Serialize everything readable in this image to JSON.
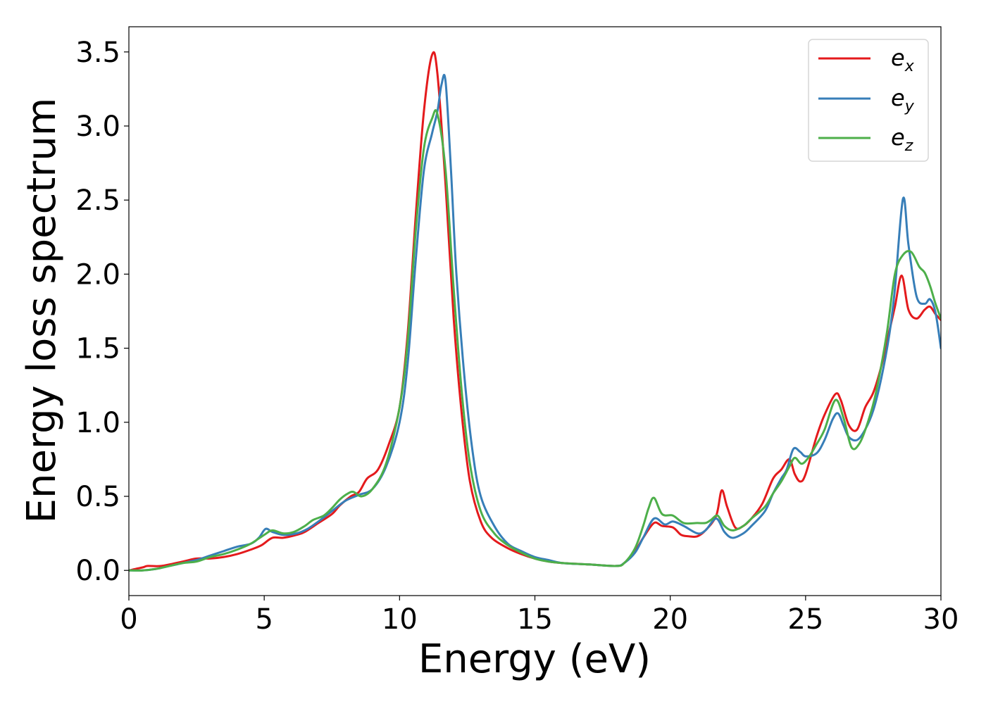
{
  "chart_data": {
    "type": "line",
    "title": "",
    "xlabel": "Energy (eV)",
    "ylabel": "Energy loss spectrum",
    "xlim": [
      0,
      30
    ],
    "ylim": [
      -0.17,
      3.67
    ],
    "xticks": [
      0,
      5,
      10,
      15,
      20,
      25,
      30
    ],
    "xtick_labels": [
      "0",
      "5",
      "10",
      "15",
      "20",
      "25",
      "30"
    ],
    "yticks": [
      0.0,
      0.5,
      1.0,
      1.5,
      2.0,
      2.5,
      3.0,
      3.5
    ],
    "ytick_labels": [
      "0.0",
      "0.5",
      "1.0",
      "1.5",
      "2.0",
      "2.5",
      "3.0",
      "3.5"
    ],
    "grid": false,
    "legend_position": "top-right",
    "series": [
      {
        "name": "e_x",
        "label_base": "e",
        "label_sub": "x",
        "color": "#e41a1c",
        "x": [
          0,
          0.5,
          0.7,
          1.2,
          2,
          2.5,
          3,
          3.5,
          4,
          4.5,
          4.9,
          5.3,
          5.7,
          6.2,
          6.5,
          7,
          7.5,
          7.8,
          8.2,
          8.5,
          8.8,
          9.2,
          9.6,
          10,
          10.3,
          10.6,
          10.9,
          11.2,
          11.4,
          11.7,
          12,
          12.3,
          12.6,
          13,
          13.4,
          14,
          14.5,
          15,
          15.5,
          16,
          17,
          18,
          18.3,
          18.7,
          19,
          19.4,
          19.7,
          20.1,
          20.4,
          20.7,
          21,
          21.3,
          21.7,
          21.9,
          22.1,
          22.4,
          22.7,
          23,
          23.4,
          23.8,
          24.1,
          24.4,
          24.6,
          24.8,
          25,
          25.4,
          25.7,
          26.1,
          26.3,
          26.6,
          26.9,
          27.2,
          27.5,
          27.8,
          28.1,
          28.3,
          28.55,
          28.8,
          29.1,
          29.4,
          29.6,
          29.8,
          30
        ],
        "y": [
          0,
          0.02,
          0.03,
          0.03,
          0.06,
          0.08,
          0.08,
          0.09,
          0.11,
          0.14,
          0.17,
          0.22,
          0.22,
          0.24,
          0.26,
          0.32,
          0.38,
          0.44,
          0.5,
          0.53,
          0.62,
          0.68,
          0.85,
          1.1,
          1.6,
          2.4,
          3.1,
          3.48,
          3.35,
          2.6,
          1.7,
          1.05,
          0.6,
          0.33,
          0.22,
          0.15,
          0.11,
          0.08,
          0.06,
          0.05,
          0.04,
          0.03,
          0.05,
          0.13,
          0.22,
          0.32,
          0.3,
          0.29,
          0.24,
          0.23,
          0.23,
          0.27,
          0.37,
          0.54,
          0.43,
          0.29,
          0.3,
          0.35,
          0.45,
          0.62,
          0.68,
          0.75,
          0.65,
          0.6,
          0.65,
          0.9,
          1.05,
          1.19,
          1.15,
          0.98,
          0.95,
          1.1,
          1.2,
          1.38,
          1.62,
          1.78,
          1.99,
          1.76,
          1.7,
          1.76,
          1.78,
          1.73,
          1.69
        ]
      },
      {
        "name": "e_y",
        "label_base": "e",
        "label_sub": "y",
        "color": "#377eb8",
        "x": [
          0,
          0.5,
          1,
          1.5,
          2,
          2.5,
          3,
          3.5,
          4,
          4.5,
          4.8,
          5.05,
          5.3,
          5.7,
          6.2,
          6.6,
          7,
          7.5,
          8,
          8.5,
          9,
          9.5,
          10,
          10.3,
          10.6,
          10.9,
          11.2,
          11.4,
          11.55,
          11.7,
          11.9,
          12.1,
          12.4,
          12.7,
          13,
          13.5,
          14,
          14.5,
          15,
          15.5,
          16,
          17,
          18,
          18.3,
          18.7,
          19,
          19.4,
          19.8,
          20.1,
          20.5,
          21,
          21.3,
          21.7,
          22,
          22.3,
          22.7,
          23,
          23.5,
          23.8,
          24.1,
          24.3,
          24.55,
          24.8,
          25,
          25.4,
          25.7,
          26,
          26.2,
          26.4,
          26.6,
          26.9,
          27.2,
          27.5,
          27.8,
          28.1,
          28.3,
          28.6,
          28.8,
          29.1,
          29.4,
          29.6,
          29.8,
          30
        ],
        "y": [
          0,
          0,
          0.01,
          0.03,
          0.05,
          0.07,
          0.1,
          0.13,
          0.16,
          0.18,
          0.22,
          0.28,
          0.26,
          0.24,
          0.25,
          0.28,
          0.33,
          0.4,
          0.47,
          0.51,
          0.55,
          0.7,
          1.0,
          1.4,
          2.1,
          2.7,
          2.95,
          3.1,
          3.28,
          3.3,
          2.7,
          2.0,
          1.3,
          0.8,
          0.5,
          0.3,
          0.18,
          0.13,
          0.09,
          0.07,
          0.05,
          0.04,
          0.03,
          0.05,
          0.12,
          0.22,
          0.35,
          0.31,
          0.33,
          0.3,
          0.25,
          0.27,
          0.35,
          0.26,
          0.22,
          0.25,
          0.3,
          0.4,
          0.52,
          0.62,
          0.68,
          0.82,
          0.8,
          0.77,
          0.79,
          0.88,
          1.02,
          1.06,
          0.98,
          0.9,
          0.88,
          0.95,
          1.08,
          1.3,
          1.6,
          1.9,
          2.51,
          2.2,
          1.85,
          1.8,
          1.83,
          1.74,
          1.5
        ]
      },
      {
        "name": "e_z",
        "label_base": "e",
        "label_sub": "z",
        "color": "#4daf4a",
        "x": [
          0,
          0.5,
          1,
          1.5,
          2,
          2.5,
          3,
          3.5,
          4,
          4.5,
          5,
          5.3,
          5.7,
          6.1,
          6.5,
          6.8,
          7.2,
          7.5,
          7.8,
          8.1,
          8.3,
          8.6,
          9,
          9.5,
          10,
          10.3,
          10.6,
          10.9,
          11.2,
          11.4,
          11.7,
          12,
          12.3,
          12.6,
          13,
          13.5,
          14,
          14.5,
          15,
          15.5,
          16,
          17,
          18,
          18.3,
          18.7,
          19,
          19.2,
          19.4,
          19.7,
          20.1,
          20.5,
          21,
          21.3,
          21.5,
          21.75,
          22,
          22.3,
          22.7,
          23,
          23.5,
          23.8,
          24.1,
          24.4,
          24.6,
          24.85,
          25.1,
          25.4,
          25.7,
          26.1,
          26.4,
          26.7,
          27,
          27.3,
          27.6,
          28,
          28.3,
          28.6,
          28.9,
          29.2,
          29.4,
          29.6,
          29.8,
          30
        ],
        "y": [
          0,
          0,
          0.01,
          0.03,
          0.05,
          0.06,
          0.09,
          0.11,
          0.14,
          0.18,
          0.24,
          0.27,
          0.25,
          0.26,
          0.3,
          0.34,
          0.37,
          0.42,
          0.48,
          0.52,
          0.53,
          0.5,
          0.55,
          0.72,
          1.1,
          1.55,
          2.3,
          2.85,
          3.05,
          3.08,
          2.7,
          1.9,
          1.2,
          0.72,
          0.4,
          0.25,
          0.17,
          0.12,
          0.08,
          0.06,
          0.05,
          0.04,
          0.03,
          0.05,
          0.15,
          0.3,
          0.42,
          0.49,
          0.38,
          0.37,
          0.32,
          0.32,
          0.32,
          0.34,
          0.37,
          0.3,
          0.27,
          0.3,
          0.35,
          0.43,
          0.52,
          0.6,
          0.7,
          0.76,
          0.72,
          0.76,
          0.85,
          0.95,
          1.15,
          1.03,
          0.83,
          0.86,
          1.0,
          1.2,
          1.6,
          2.0,
          2.13,
          2.15,
          2.05,
          2.01,
          1.92,
          1.8,
          1.7
        ]
      }
    ]
  }
}
